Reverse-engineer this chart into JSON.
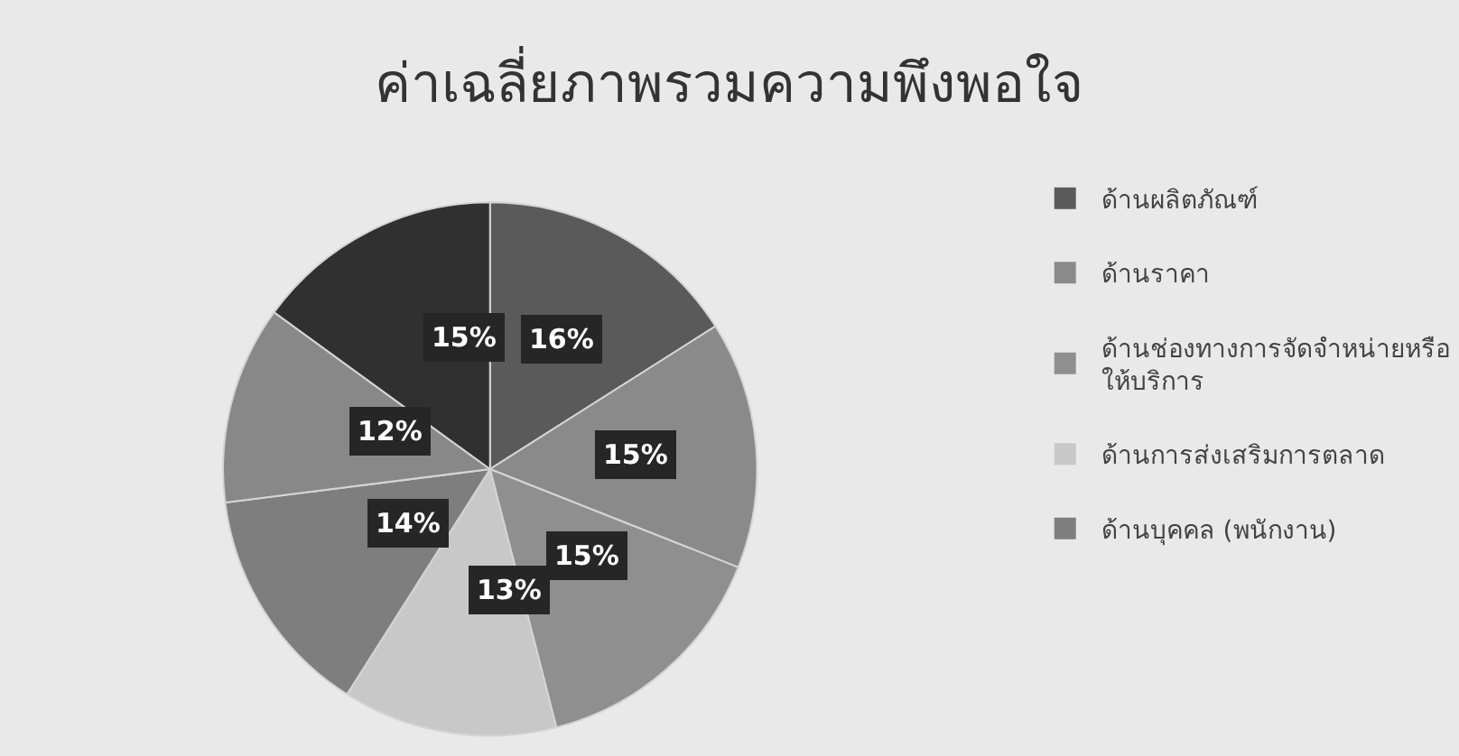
{
  "chart_data": {
    "type": "pie",
    "title": "ค่าเฉลี่ยภาพรวมความพึงพอใจ",
    "categories": [
      "ด้านผลิตภัณฑ์",
      "ด้านราคา",
      "ด้านช่องทางการจัดจำหน่ายหรือ\nให้บริการ",
      "ด้านการส่งเสริมการตลาด",
      "ด้านบุคคล (พนักงาน)",
      null,
      null
    ],
    "values": [
      16,
      15,
      15,
      13,
      14,
      12,
      15
    ],
    "colors": [
      "#5a5a5a",
      "#8a8a8a",
      "#8f8f8f",
      "#c8c8c8",
      "#7e7e7e",
      "#888888",
      "#303030"
    ],
    "value_labels": [
      "16%",
      "15%",
      "15%",
      "13%",
      "14%",
      "12%",
      "15%"
    ],
    "legend": "right"
  }
}
